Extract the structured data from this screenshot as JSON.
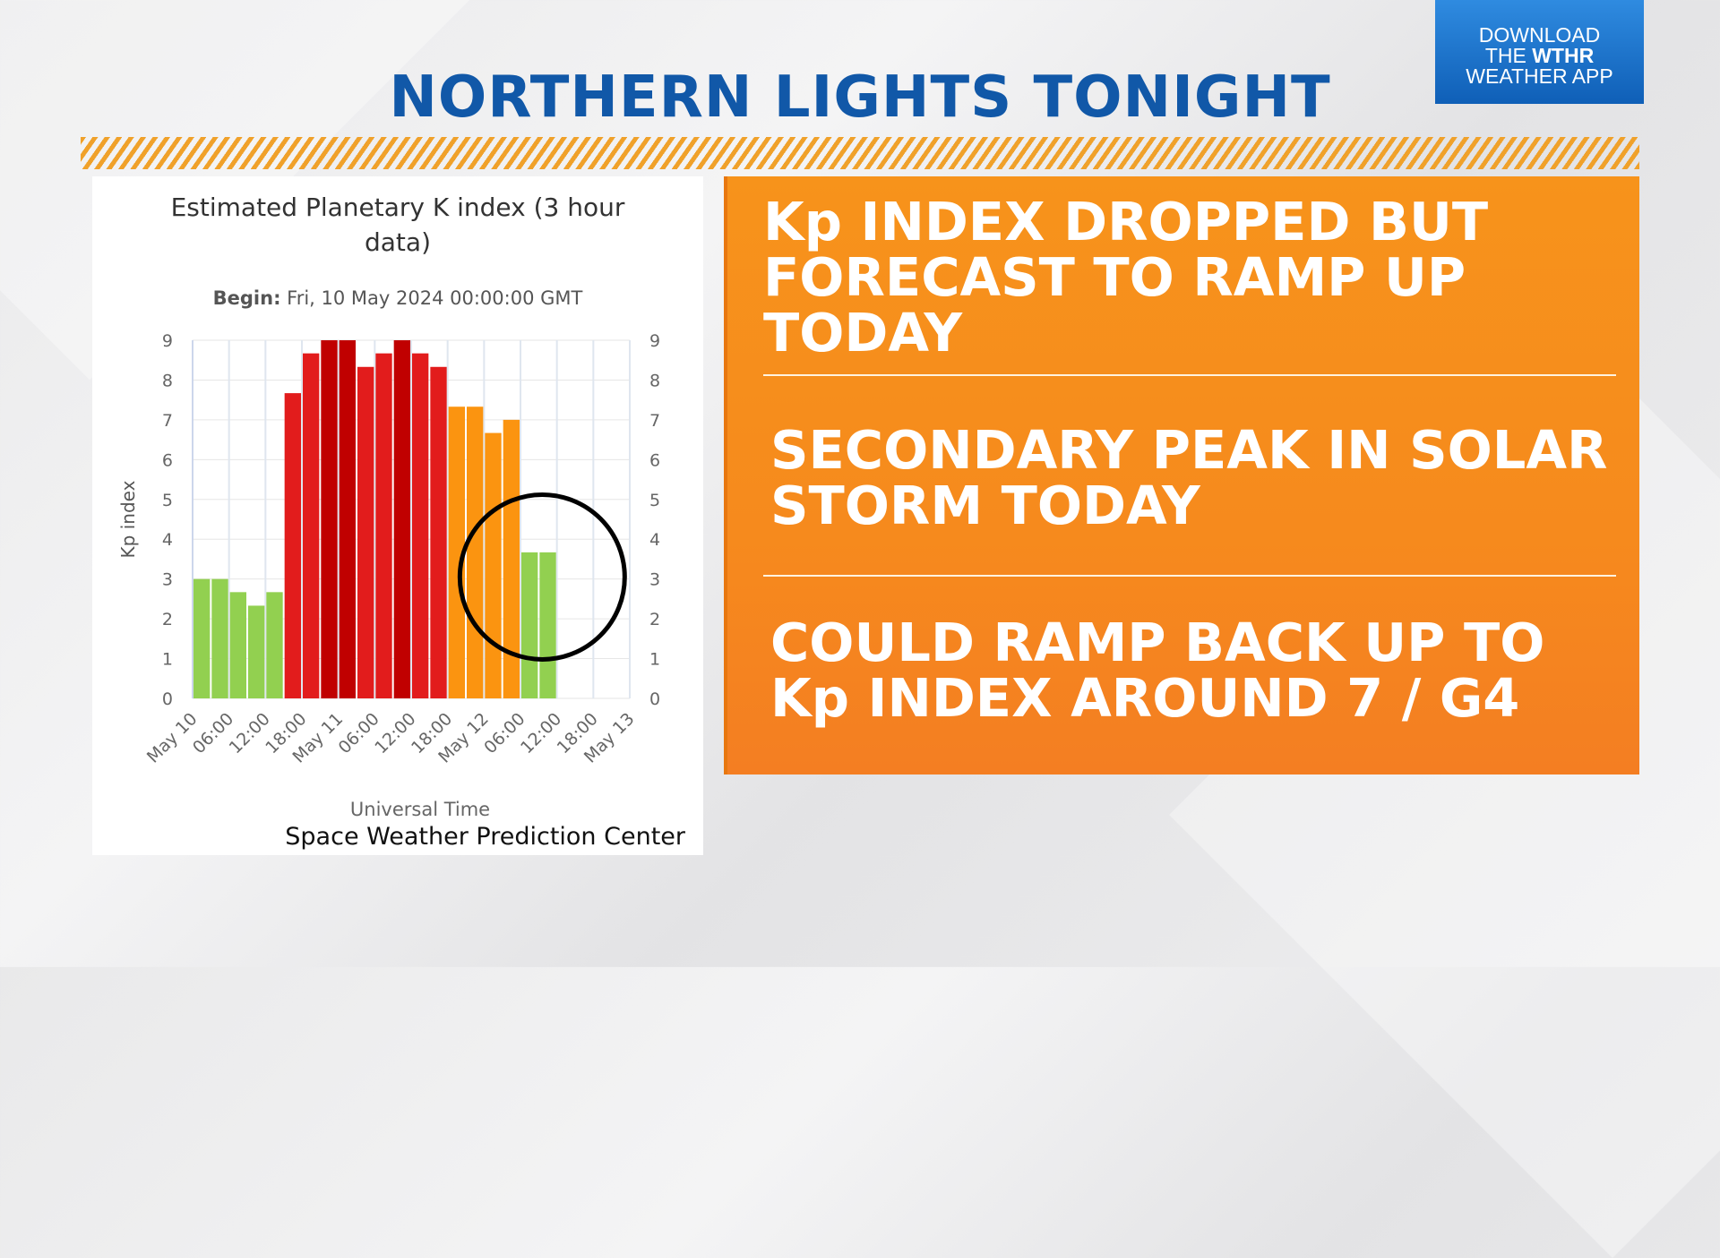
{
  "headline": "NORTHERN LIGHTS TONIGHT",
  "app_badge": {
    "line1": "DOWNLOAD",
    "line2_prefix": "THE ",
    "line2_brand": "WTHR",
    "line3": "WEATHER APP"
  },
  "points": [
    {
      "line1": "Kp INDEX DROPPED BUT",
      "line2": "FORECAST TO RAMP UP",
      "line3": "TODAY"
    },
    {
      "line1": "SECONDARY PEAK IN SOLAR",
      "line2": "STORM TODAY"
    },
    {
      "line1": "COULD RAMP BACK UP TO",
      "line2": "Kp INDEX AROUND 7 / G4"
    }
  ],
  "colors": {
    "headline": "#1158a8",
    "badge": "#1a72cc",
    "panel": "#f68a1d",
    "green": "#92d050",
    "red": "#e21c1c",
    "dark_red": "#c00000",
    "orange": "#fb9410"
  },
  "chart_data": {
    "type": "bar",
    "title_line1": "Estimated Planetary K index (3 hour",
    "title_line2": "data)",
    "subtitle_label": "Begin:",
    "subtitle_value": " Fri, 10 May 2024 00:00:00 GMT",
    "ylabel": "Kp index",
    "xlabel": "Universal Time",
    "credits": "Space Weather Prediction Center",
    "ylim": [
      0,
      9
    ],
    "yticks": [
      "0",
      "1",
      "2",
      "3",
      "4",
      "5",
      "6",
      "7",
      "8",
      "9"
    ],
    "x_tick_labels": [
      "May 10",
      "06:00",
      "12:00",
      "18:00",
      "May 11",
      "06:00",
      "12:00",
      "18:00",
      "May 12",
      "06:00",
      "12:00",
      "18:00",
      "May 13"
    ],
    "grid": true,
    "values": [
      3.0,
      3.0,
      2.67,
      2.33,
      2.67,
      7.67,
      8.67,
      9.0,
      9.0,
      8.33,
      8.67,
      9.0,
      8.67,
      8.33,
      7.33,
      7.33,
      6.67,
      7.0,
      3.67,
      3.67
    ],
    "bar_colors": [
      "#92d050",
      "#92d050",
      "#92d050",
      "#92d050",
      "#92d050",
      "#e21c1c",
      "#e21c1c",
      "#c00000",
      "#c00000",
      "#e21c1c",
      "#e21c1c",
      "#c00000",
      "#e21c1c",
      "#e21c1c",
      "#fb9410",
      "#fb9410",
      "#fb9410",
      "#fb9410",
      "#92d050",
      "#92d050"
    ],
    "annotation": "circle-around-latest-values"
  }
}
